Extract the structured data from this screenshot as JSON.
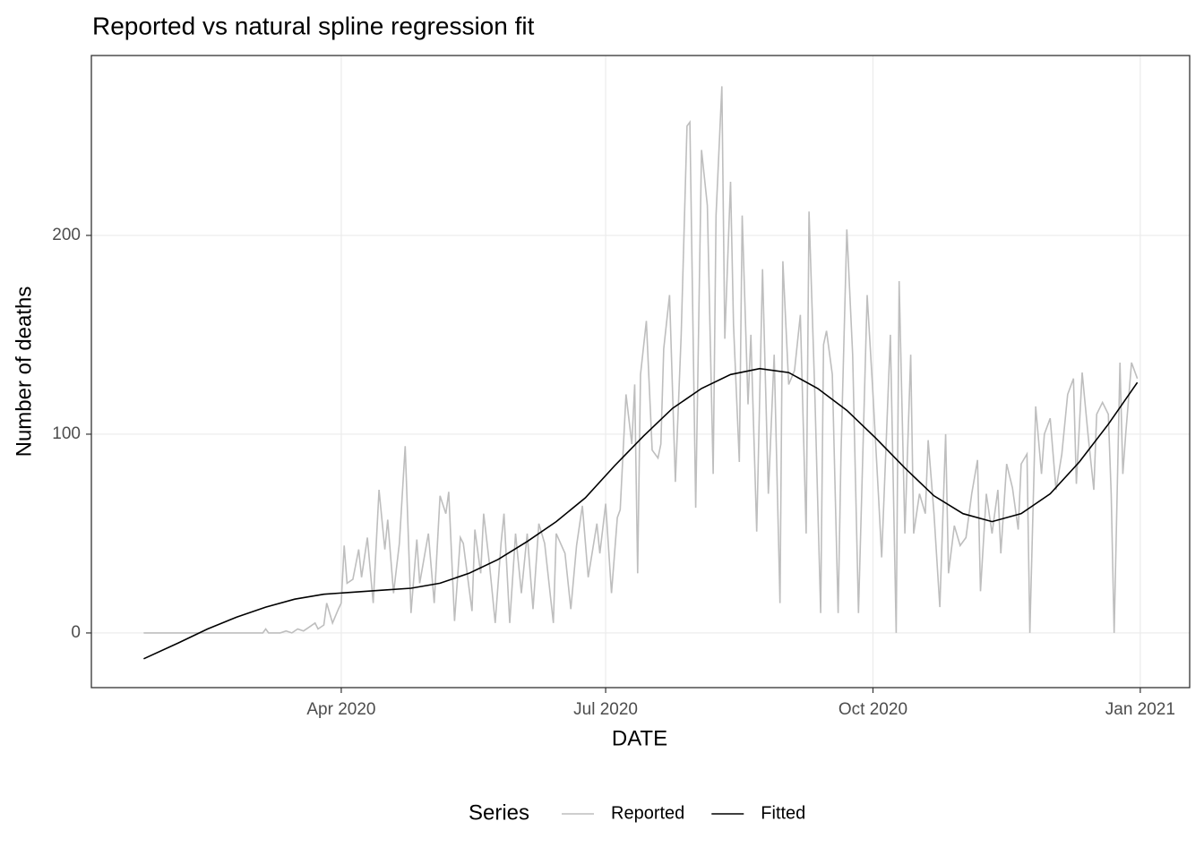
{
  "chart_data": {
    "type": "line",
    "title": "Reported vs natural spline regression fit",
    "x_label": "DATE",
    "y_label": "Number of deaths",
    "legend_title": "Series",
    "legend": "bottom",
    "grid": true,
    "xlim": [
      5,
      383
    ],
    "ylim": [
      -27.5,
      290.5
    ],
    "xticks": [
      {
        "value": 91,
        "label": "Apr 2020"
      },
      {
        "value": 182,
        "label": "Jul 2020"
      },
      {
        "value": 274,
        "label": "Oct 2020"
      },
      {
        "value": 366,
        "label": "Jan 2021"
      }
    ],
    "yticks": [
      0,
      100,
      200
    ],
    "series": [
      {
        "name": "Reported",
        "color": "#bebebe",
        "x": [
          23,
          64,
          65,
          66,
          70,
          72,
          74,
          76,
          78,
          80,
          82,
          83,
          85,
          86,
          88,
          90,
          91,
          92,
          93,
          95,
          97,
          98,
          100,
          102,
          104,
          106,
          107,
          109,
          111,
          113,
          115,
          117,
          118,
          121,
          123,
          125,
          127,
          128,
          130,
          132,
          133,
          136,
          137,
          139,
          140,
          142,
          144,
          146,
          147,
          149,
          151,
          153,
          155,
          157,
          159,
          161,
          164,
          165,
          168,
          170,
          172,
          174,
          176,
          179,
          180,
          182,
          184,
          186,
          187,
          189,
          191,
          192,
          193,
          194,
          196,
          198,
          200,
          201,
          202,
          204,
          206,
          208,
          210,
          211,
          213,
          215,
          217,
          219,
          220,
          222,
          223,
          225,
          226,
          228,
          229,
          231,
          232,
          234,
          236,
          238,
          240,
          242,
          243,
          245,
          247,
          249,
          251,
          252,
          254,
          256,
          257,
          258,
          260,
          262,
          263,
          265,
          267,
          269,
          272,
          274,
          276,
          277,
          280,
          282,
          283,
          285,
          287,
          288,
          290,
          292,
          293,
          295,
          297,
          299,
          300,
          302,
          304,
          306,
          308,
          310,
          311,
          313,
          315,
          317,
          318,
          320,
          322,
          324,
          325,
          327,
          328,
          330,
          332,
          333,
          335,
          337,
          339,
          341,
          343,
          344,
          346,
          348,
          350,
          351,
          353,
          355,
          356,
          357,
          359,
          360,
          361,
          363,
          365
        ],
        "values": [
          0,
          0,
          2,
          0,
          0,
          1,
          0,
          2,
          1,
          3,
          5,
          2,
          4,
          15,
          5,
          12,
          15,
          44,
          25,
          27,
          42,
          28,
          48,
          15,
          72,
          42,
          57,
          20,
          45,
          94,
          10,
          47,
          25,
          50,
          15,
          69,
          60,
          71,
          6,
          48,
          45,
          11,
          52,
          30,
          60,
          35,
          5,
          45,
          60,
          5,
          50,
          20,
          50,
          12,
          55,
          45,
          5,
          50,
          40,
          12,
          44,
          64,
          28,
          55,
          40,
          65,
          20,
          58,
          62,
          120,
          95,
          125,
          30,
          130,
          157,
          92,
          88,
          95,
          143,
          170,
          76,
          150,
          255,
          257,
          63,
          243,
          215,
          80,
          210,
          275,
          148,
          227,
          155,
          86,
          210,
          115,
          150,
          51,
          183,
          70,
          140,
          15,
          187,
          125,
          132,
          160,
          50,
          212,
          120,
          10,
          145,
          152,
          130,
          10,
          90,
          203,
          140,
          10,
          170,
          120,
          66,
          38,
          150,
          0,
          177,
          50,
          140,
          50,
          70,
          60,
          97,
          60,
          13,
          100,
          30,
          54,
          44,
          48,
          70,
          87,
          21,
          70,
          50,
          72,
          40,
          85,
          73,
          52,
          85,
          90,
          0,
          114,
          80,
          100,
          108,
          72,
          90,
          120,
          128,
          75,
          131,
          100,
          72,
          110,
          116,
          110,
          70,
          0,
          136,
          80,
          100,
          136,
          128
        ]
      },
      {
        "name": "Fitted",
        "color": "#000000",
        "x": [
          23,
          35,
          45,
          55,
          65,
          75,
          85,
          95,
          105,
          115,
          125,
          135,
          145,
          155,
          165,
          175,
          185,
          195,
          205,
          215,
          225,
          235,
          245,
          255,
          265,
          275,
          285,
          295,
          305,
          315,
          325,
          335,
          345,
          355,
          365
        ],
        "values": [
          -13,
          -5,
          2,
          8,
          13,
          17,
          19.5,
          20.5,
          21.5,
          22.5,
          25,
          30,
          37,
          46,
          56,
          68,
          84,
          99,
          113,
          123,
          130,
          133,
          131,
          123,
          112,
          98,
          83,
          69,
          60,
          56,
          60,
          70,
          86,
          105,
          126
        ]
      }
    ]
  }
}
